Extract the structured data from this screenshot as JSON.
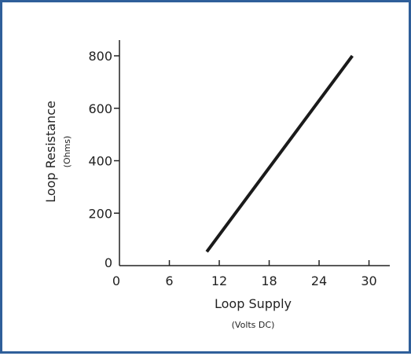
{
  "colors": {
    "border": "#2f5f9a",
    "axis": "#222222",
    "series": "#1a1a1a"
  },
  "chart_data": {
    "type": "line",
    "xlabel": "Loop Supply",
    "xlabel_sub": "(Volts DC)",
    "ylabel": "Loop Resistance",
    "ylabel_sub": "(Ohms)",
    "xlim": [
      0,
      32.5
    ],
    "ylim": [
      0,
      860
    ],
    "x_ticks": [
      0,
      6,
      12,
      18,
      24,
      30
    ],
    "y_ticks": [
      0,
      200,
      400,
      600,
      800
    ],
    "grid": false,
    "series": [
      {
        "x": [
          10.5,
          28
        ],
        "y": [
          53,
          800
        ]
      }
    ]
  }
}
